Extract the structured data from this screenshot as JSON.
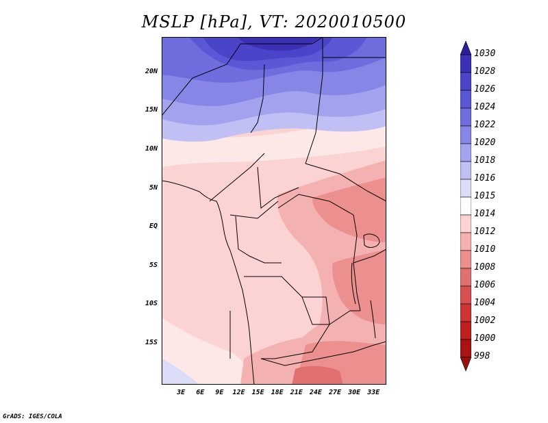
{
  "title": "MSLP [hPa], VT: 2020010500",
  "credit": "GrADS: IGES/COLA",
  "map": {
    "lat_range": [
      -20,
      25
    ],
    "lon_range": [
      0,
      35
    ],
    "lat_labels": [
      "20N",
      "15N",
      "10N",
      "5N",
      "EQ",
      "5S",
      "10S",
      "15S"
    ],
    "lon_labels": [
      "3E",
      "6E",
      "9E",
      "12E",
      "15E",
      "18E",
      "21E",
      "24E",
      "27E",
      "30E",
      "33E"
    ]
  },
  "colorbar": {
    "labels": [
      "1030",
      "1028",
      "1026",
      "1024",
      "1022",
      "1020",
      "1018",
      "1016",
      "1015",
      "1014",
      "1012",
      "1010",
      "1008",
      "1006",
      "1004",
      "1002",
      "1000",
      "998"
    ],
    "colors": [
      "#2d1f9c",
      "#3b31b5",
      "#4a44c9",
      "#5a58d4",
      "#6d6dde",
      "#8686e6",
      "#a2a2ee",
      "#c0c0f4",
      "#dcdcf8",
      "#ffffff",
      "#fbd3d3",
      "#f4b1b1",
      "#ec8f8f",
      "#e27070",
      "#d85050",
      "#cc3434",
      "#be2020",
      "#a81414",
      "#951010"
    ]
  }
}
